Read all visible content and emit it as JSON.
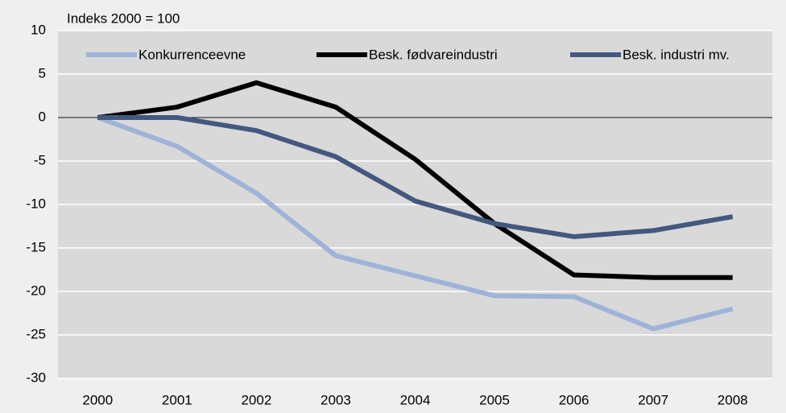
{
  "chart_data": {
    "type": "line",
    "y_label": "Indeks 2000 = 100",
    "categories": [
      "2000",
      "2001",
      "2002",
      "2003",
      "2004",
      "2005",
      "2006",
      "2007",
      "2008"
    ],
    "series": [
      {
        "name": "Konkurrenceevne",
        "color": "#9fb3d9",
        "values": [
          0,
          -3.3,
          -8.7,
          -15.9,
          -18.2,
          -20.5,
          -20.6,
          -24.3,
          -22.0
        ]
      },
      {
        "name": "Besk. fødvareindustri",
        "color": "#000000",
        "values": [
          0,
          1.2,
          4.0,
          1.2,
          -4.8,
          -12.2,
          -18.1,
          -18.4,
          -18.4
        ]
      },
      {
        "name": "Besk. industri mv.",
        "color": "#44587f",
        "values": [
          0,
          0,
          -1.5,
          -4.5,
          -9.6,
          -12.2,
          -13.7,
          -13.0,
          -11.4
        ]
      }
    ],
    "ylim": [
      -30,
      10
    ],
    "yticks": [
      -30,
      -25,
      -20,
      -15,
      -10,
      -5,
      0,
      5,
      10
    ],
    "grid": true,
    "legend": "top"
  }
}
